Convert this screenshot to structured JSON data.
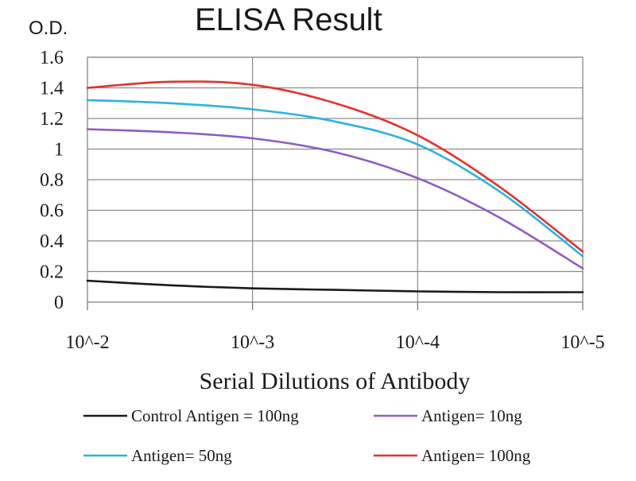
{
  "chart_data": {
    "type": "line",
    "title": "ELISA Result",
    "ylabel": "O.D.",
    "xlabel": "Serial Dilutions of Antibody",
    "categories": [
      "10^-2",
      "10^-3",
      "10^-4",
      "10^-5"
    ],
    "xlim": [
      0,
      3
    ],
    "ylim": [
      0,
      1.6
    ],
    "yticks": [
      "0",
      "0.2",
      "0.4",
      "0.6",
      "0.8",
      "1",
      "1.2",
      "1.4",
      "1.6"
    ],
    "grid": true,
    "legend_position": "bottom",
    "series": [
      {
        "name": "Control Antigen = 100ng",
        "color": "#1a1a1a",
        "points": [
          [
            0,
            0.14
          ],
          [
            0.5,
            0.11
          ],
          [
            1,
            0.09
          ],
          [
            1.5,
            0.08
          ],
          [
            2,
            0.07
          ],
          [
            2.5,
            0.065
          ],
          [
            3,
            0.065
          ]
        ]
      },
      {
        "name": "Antigen= 10ng",
        "color": "#8e5bc8",
        "points": [
          [
            0,
            1.13
          ],
          [
            0.5,
            1.11
          ],
          [
            1,
            1.07
          ],
          [
            1.5,
            0.98
          ],
          [
            2,
            0.81
          ],
          [
            2.5,
            0.55
          ],
          [
            3,
            0.22
          ]
        ]
      },
      {
        "name": "Antigen= 50ng",
        "color": "#2ab3e0",
        "points": [
          [
            0,
            1.32
          ],
          [
            0.5,
            1.3
          ],
          [
            1,
            1.26
          ],
          [
            1.5,
            1.18
          ],
          [
            2,
            1.03
          ],
          [
            2.5,
            0.72
          ],
          [
            3,
            0.3
          ]
        ]
      },
      {
        "name": "Antigen= 100ng",
        "color": "#e8302a",
        "points": [
          [
            0,
            1.4
          ],
          [
            0.5,
            1.44
          ],
          [
            1,
            1.42
          ],
          [
            1.5,
            1.3
          ],
          [
            2,
            1.09
          ],
          [
            2.5,
            0.75
          ],
          [
            3,
            0.33
          ]
        ]
      }
    ]
  }
}
